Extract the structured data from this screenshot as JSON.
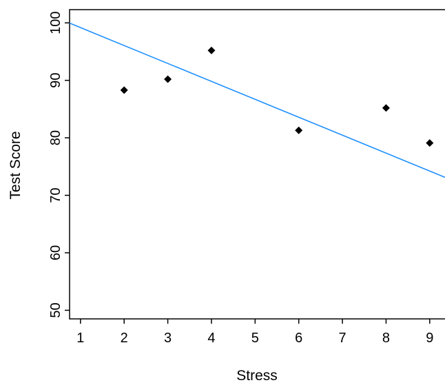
{
  "chart_data": {
    "type": "scatter",
    "xlabel": "Stress",
    "ylabel": "Test Score",
    "xlim": [
      0.75,
      9.35
    ],
    "ylim": [
      48.5,
      102.3
    ],
    "x_ticks": [
      "1",
      "2",
      "3",
      "4",
      "5",
      "6",
      "7",
      "8",
      "9"
    ],
    "y_ticks": [
      "50",
      "60",
      "70",
      "80",
      "90",
      "100"
    ],
    "points": [
      {
        "x": 2,
        "y": 88.3
      },
      {
        "x": 3,
        "y": 90.2
      },
      {
        "x": 4,
        "y": 95.2
      },
      {
        "x": 6,
        "y": 81.3
      },
      {
        "x": 8,
        "y": 85.2
      },
      {
        "x": 9,
        "y": 79.1
      }
    ],
    "regression_line": {
      "intercept": 102.3,
      "slope": -3.12
    },
    "colors": {
      "points": "#000000",
      "line": "#1e90ff",
      "frame": "#000000"
    },
    "grid": false,
    "legend": "none"
  }
}
